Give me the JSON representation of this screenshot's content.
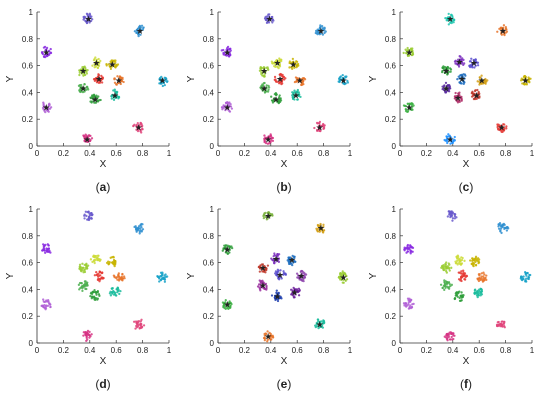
{
  "chart_data": [
    {
      "type": "scatter",
      "panel": "a",
      "xlabel": "X",
      "ylabel": "Y",
      "xlim": [
        0,
        1
      ],
      "ylim": [
        0,
        1
      ],
      "xticks": [
        "0",
        "0.2",
        "0.4",
        "0.6",
        "0.8",
        "1"
      ],
      "yticks": [
        "0",
        "0.2",
        "0.4",
        "0.6",
        "0.8",
        "1"
      ],
      "grid": false,
      "clusters": [
        {
          "x": 0.39,
          "y": 0.95,
          "color": "#6a5acd"
        },
        {
          "x": 0.78,
          "y": 0.86,
          "color": "#2f8fd0"
        },
        {
          "x": 0.07,
          "y": 0.7,
          "color": "#8a2be2"
        },
        {
          "x": 0.35,
          "y": 0.56,
          "color": "#9acd32"
        },
        {
          "x": 0.45,
          "y": 0.62,
          "color": "#cddc39"
        },
        {
          "x": 0.57,
          "y": 0.61,
          "color": "#c8b400"
        },
        {
          "x": 0.47,
          "y": 0.5,
          "color": "#e53935"
        },
        {
          "x": 0.62,
          "y": 0.49,
          "color": "#e8742a"
        },
        {
          "x": 0.35,
          "y": 0.43,
          "color": "#4caf50"
        },
        {
          "x": 0.44,
          "y": 0.35,
          "color": "#2e9e3a"
        },
        {
          "x": 0.59,
          "y": 0.38,
          "color": "#1abc9c"
        },
        {
          "x": 0.95,
          "y": 0.49,
          "color": "#17a2c8"
        },
        {
          "x": 0.07,
          "y": 0.29,
          "color": "#b05fd6"
        },
        {
          "x": 0.38,
          "y": 0.05,
          "color": "#d63384"
        },
        {
          "x": 0.77,
          "y": 0.14,
          "color": "#e0457b"
        }
      ],
      "centroids_marked": true,
      "caption": "a"
    },
    {
      "type": "scatter",
      "panel": "b",
      "xlabel": "X",
      "ylabel": "Y",
      "xlim": [
        0,
        1
      ],
      "ylim": [
        0,
        1
      ],
      "xticks": [
        "0",
        "0.2",
        "0.4",
        "0.6",
        "0.8",
        "1"
      ],
      "yticks": [
        "0",
        "0.2",
        "0.4",
        "0.6",
        "0.8",
        "1"
      ],
      "grid": false,
      "clusters": [
        {
          "x": 0.39,
          "y": 0.95,
          "color": "#6a5acd"
        },
        {
          "x": 0.78,
          "y": 0.86,
          "color": "#2f8fd0"
        },
        {
          "x": 0.07,
          "y": 0.7,
          "color": "#8a2be2"
        },
        {
          "x": 0.35,
          "y": 0.56,
          "color": "#9acd32"
        },
        {
          "x": 0.45,
          "y": 0.62,
          "color": "#cddc39"
        },
        {
          "x": 0.57,
          "y": 0.61,
          "color": "#c8b400"
        },
        {
          "x": 0.47,
          "y": 0.5,
          "color": "#e53935"
        },
        {
          "x": 0.62,
          "y": 0.49,
          "color": "#e8742a"
        },
        {
          "x": 0.35,
          "y": 0.43,
          "color": "#4caf50"
        },
        {
          "x": 0.44,
          "y": 0.35,
          "color": "#2e9e3a"
        },
        {
          "x": 0.59,
          "y": 0.38,
          "color": "#1abc9c"
        },
        {
          "x": 0.95,
          "y": 0.49,
          "color": "#17a2c8"
        },
        {
          "x": 0.07,
          "y": 0.29,
          "color": "#b05fd6"
        },
        {
          "x": 0.38,
          "y": 0.05,
          "color": "#d63384"
        },
        {
          "x": 0.77,
          "y": 0.14,
          "color": "#e0457b"
        }
      ],
      "centroids_marked": true,
      "caption": "b"
    },
    {
      "type": "scatter",
      "panel": "c",
      "xlabel": "X",
      "ylabel": "Y",
      "xlim": [
        0,
        1
      ],
      "ylim": [
        0,
        1
      ],
      "xticks": [
        "0",
        "0.2",
        "0.4",
        "0.6",
        "0.8",
        "1"
      ],
      "yticks": [
        "0",
        "0.2",
        "0.4",
        "0.6",
        "0.8",
        "1"
      ],
      "grid": false,
      "clusters": [
        {
          "x": 0.38,
          "y": 0.95,
          "color": "#1fc7b0"
        },
        {
          "x": 0.78,
          "y": 0.86,
          "color": "#e8742a"
        },
        {
          "x": 0.07,
          "y": 0.7,
          "color": "#9acd32"
        },
        {
          "x": 0.35,
          "y": 0.56,
          "color": "#2e9e3a"
        },
        {
          "x": 0.45,
          "y": 0.63,
          "color": "#7b2fbe"
        },
        {
          "x": 0.56,
          "y": 0.62,
          "color": "#5b4fcf"
        },
        {
          "x": 0.47,
          "y": 0.5,
          "color": "#1f6fbf"
        },
        {
          "x": 0.62,
          "y": 0.49,
          "color": "#d4a017"
        },
        {
          "x": 0.35,
          "y": 0.43,
          "color": "#5a2aa0"
        },
        {
          "x": 0.44,
          "y": 0.36,
          "color": "#b0306a"
        },
        {
          "x": 0.58,
          "y": 0.38,
          "color": "#c0392b"
        },
        {
          "x": 0.95,
          "y": 0.49,
          "color": "#c8b400"
        },
        {
          "x": 0.07,
          "y": 0.29,
          "color": "#3cb043"
        },
        {
          "x": 0.38,
          "y": 0.05,
          "color": "#1e90ff"
        },
        {
          "x": 0.77,
          "y": 0.14,
          "color": "#e53935"
        }
      ],
      "centroids_marked": true,
      "caption": "c"
    },
    {
      "type": "scatter",
      "panel": "d",
      "xlabel": "X",
      "ylabel": "Y",
      "xlim": [
        0,
        1
      ],
      "ylim": [
        0,
        1
      ],
      "xticks": [
        "0",
        "0.2",
        "0.4",
        "0.6",
        "0.8",
        "1"
      ],
      "yticks": [
        "0",
        "0.2",
        "0.4",
        "0.6",
        "0.8",
        "1"
      ],
      "grid": false,
      "clusters": [
        {
          "x": 0.39,
          "y": 0.95,
          "color": "#6a5acd"
        },
        {
          "x": 0.78,
          "y": 0.86,
          "color": "#2f8fd0"
        },
        {
          "x": 0.07,
          "y": 0.7,
          "color": "#8a2be2"
        },
        {
          "x": 0.35,
          "y": 0.56,
          "color": "#9acd32"
        },
        {
          "x": 0.45,
          "y": 0.62,
          "color": "#cddc39"
        },
        {
          "x": 0.57,
          "y": 0.61,
          "color": "#c8b400"
        },
        {
          "x": 0.47,
          "y": 0.5,
          "color": "#e53935"
        },
        {
          "x": 0.62,
          "y": 0.49,
          "color": "#e8742a"
        },
        {
          "x": 0.35,
          "y": 0.43,
          "color": "#4caf50"
        },
        {
          "x": 0.44,
          "y": 0.35,
          "color": "#2e9e3a"
        },
        {
          "x": 0.59,
          "y": 0.38,
          "color": "#1abc9c"
        },
        {
          "x": 0.95,
          "y": 0.49,
          "color": "#17a2c8"
        },
        {
          "x": 0.07,
          "y": 0.29,
          "color": "#b05fd6"
        },
        {
          "x": 0.38,
          "y": 0.05,
          "color": "#d63384"
        },
        {
          "x": 0.77,
          "y": 0.14,
          "color": "#e0457b"
        }
      ],
      "centroids_marked": false,
      "caption": "d"
    },
    {
      "type": "scatter",
      "panel": "e",
      "xlabel": "X",
      "ylabel": "Y",
      "xlim": [
        0,
        1
      ],
      "ylim": [
        0,
        1
      ],
      "xticks": [
        "0",
        "0.2",
        "0.4",
        "0.6",
        "0.8",
        "1"
      ],
      "yticks": [
        "0",
        "0.2",
        "0.4",
        "0.6",
        "0.8",
        "1"
      ],
      "grid": false,
      "clusters": [
        {
          "x": 0.38,
          "y": 0.95,
          "color": "#7cb342"
        },
        {
          "x": 0.78,
          "y": 0.86,
          "color": "#d4a017"
        },
        {
          "x": 0.07,
          "y": 0.7,
          "color": "#2e9e3a"
        },
        {
          "x": 0.34,
          "y": 0.56,
          "color": "#c0392b"
        },
        {
          "x": 0.44,
          "y": 0.63,
          "color": "#7b2fbe"
        },
        {
          "x": 0.56,
          "y": 0.62,
          "color": "#1f6fbf"
        },
        {
          "x": 0.47,
          "y": 0.51,
          "color": "#5b4fcf"
        },
        {
          "x": 0.63,
          "y": 0.5,
          "color": "#8e44ad"
        },
        {
          "x": 0.34,
          "y": 0.43,
          "color": "#9b30a0"
        },
        {
          "x": 0.45,
          "y": 0.35,
          "color": "#1e40af"
        },
        {
          "x": 0.58,
          "y": 0.38,
          "color": "#6a1b9a"
        },
        {
          "x": 0.95,
          "y": 0.49,
          "color": "#9acd32"
        },
        {
          "x": 0.07,
          "y": 0.29,
          "color": "#3cb043"
        },
        {
          "x": 0.38,
          "y": 0.05,
          "color": "#e8742a"
        },
        {
          "x": 0.77,
          "y": 0.14,
          "color": "#1abc9c"
        }
      ],
      "centroids_marked": true,
      "caption": "e"
    },
    {
      "type": "scatter",
      "panel": "f",
      "xlabel": "X",
      "ylabel": "Y",
      "xlim": [
        0,
        1
      ],
      "ylim": [
        0,
        1
      ],
      "xticks": [
        "0",
        "0.2",
        "0.4",
        "0.6",
        "0.8",
        "1"
      ],
      "yticks": [
        "0",
        "0.2",
        "0.4",
        "0.6",
        "0.8",
        "1"
      ],
      "grid": false,
      "clusters": [
        {
          "x": 0.39,
          "y": 0.95,
          "color": "#6a5acd"
        },
        {
          "x": 0.78,
          "y": 0.86,
          "color": "#2f8fd0"
        },
        {
          "x": 0.07,
          "y": 0.7,
          "color": "#8a2be2"
        },
        {
          "x": 0.35,
          "y": 0.56,
          "color": "#9acd32"
        },
        {
          "x": 0.45,
          "y": 0.62,
          "color": "#cddc39"
        },
        {
          "x": 0.57,
          "y": 0.61,
          "color": "#c8b400"
        },
        {
          "x": 0.47,
          "y": 0.5,
          "color": "#e53935"
        },
        {
          "x": 0.62,
          "y": 0.49,
          "color": "#e8742a"
        },
        {
          "x": 0.35,
          "y": 0.43,
          "color": "#4caf50"
        },
        {
          "x": 0.44,
          "y": 0.35,
          "color": "#2e9e3a"
        },
        {
          "x": 0.59,
          "y": 0.38,
          "color": "#1abc9c"
        },
        {
          "x": 0.95,
          "y": 0.49,
          "color": "#17a2c8"
        },
        {
          "x": 0.07,
          "y": 0.29,
          "color": "#b05fd6"
        },
        {
          "x": 0.38,
          "y": 0.05,
          "color": "#d63384"
        },
        {
          "x": 0.77,
          "y": 0.14,
          "color": "#e0457b"
        }
      ],
      "centroids_marked": false,
      "caption": "f"
    }
  ]
}
